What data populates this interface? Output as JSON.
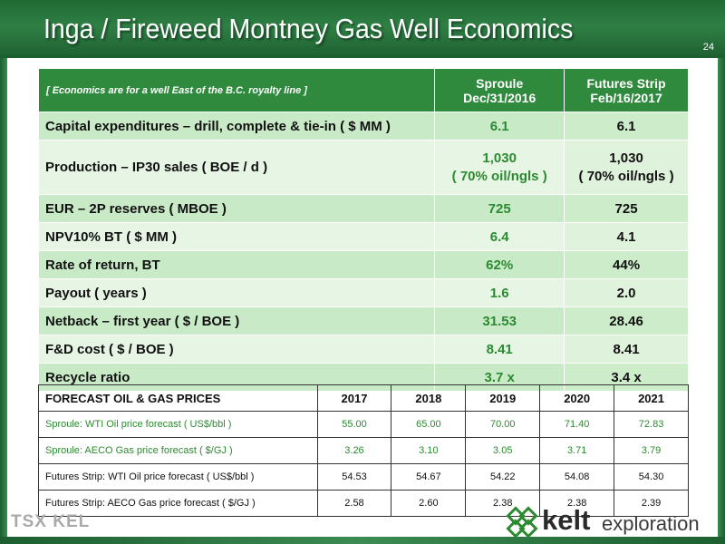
{
  "header": {
    "title": "Inga / Fireweed Montney Gas Well Economics",
    "page_number": "24"
  },
  "economics": {
    "note": "[ Economics are for a well East of the B.C. royalty line ]",
    "col1": {
      "line1": "Sproule",
      "line2": "Dec/31/2016"
    },
    "col2": {
      "line1": "Futures Strip",
      "line2": "Feb/16/2017"
    },
    "rows": [
      {
        "label": "Capital expenditures – drill, complete & tie-in ( $ MM )",
        "v1": "6.1",
        "v2": "6.1"
      },
      {
        "label": "Production – IP30 sales ( BOE / d )",
        "v1": "1,030",
        "v1b": "( 70% oil/ngls )",
        "v2": "1,030",
        "v2b": "( 70% oil/ngls )"
      },
      {
        "label": "EUR – 2P reserves ( MBOE )",
        "v1": "725",
        "v2": "725"
      },
      {
        "label": "NPV10% BT ( $ MM )",
        "v1": "6.4",
        "v2": "4.1"
      },
      {
        "label": "Rate of return, BT",
        "v1": "62%",
        "v2": "44%"
      },
      {
        "label": "Payout ( years )",
        "v1": "1.6",
        "v2": "2.0"
      },
      {
        "label": "Netback – first year ( $ / BOE )",
        "v1": "31.53",
        "v2": "28.46"
      },
      {
        "label": "F&D cost ( $ / BOE )",
        "v1": "8.41",
        "v2": "8.41"
      },
      {
        "label": "Recycle ratio",
        "v1": "3.7 x",
        "v2": "3.4 x"
      }
    ]
  },
  "forecast": {
    "header": "FORECAST OIL & GAS PRICES",
    "years": [
      "2017",
      "2018",
      "2019",
      "2020",
      "2021"
    ],
    "rows": [
      {
        "label": "Sproule: WTI Oil price forecast ( US$/bbl )",
        "values": [
          "55.00",
          "65.00",
          "70.00",
          "71.40",
          "72.83"
        ]
      },
      {
        "label": "Sproule: AECO Gas price forecast ( $/GJ )",
        "values": [
          "3.26",
          "3.10",
          "3.05",
          "3.71",
          "3.79"
        ]
      },
      {
        "label": "Futures Strip: WTI Oil price forecast ( US$/bbl )",
        "values": [
          "54.53",
          "54.67",
          "54.22",
          "54.08",
          "54.30"
        ]
      },
      {
        "label": "Futures Strip: AECO Gas price forecast ( $/GJ )",
        "values": [
          "2.58",
          "2.60",
          "2.38",
          "2.38",
          "2.39"
        ]
      }
    ]
  },
  "logos": {
    "tsx": "TSX KEL",
    "kelt_word": "kelt",
    "kelt_sub": "exploration"
  },
  "colors": {
    "header_green": "#1f6a33",
    "accent_green": "#2c8a31",
    "row_light": "#e6f5e4",
    "row_dark": "#c9eac7"
  }
}
